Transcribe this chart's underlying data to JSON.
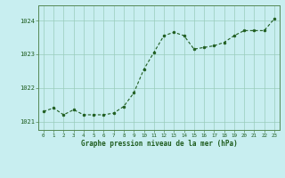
{
  "x": [
    0,
    1,
    2,
    3,
    4,
    5,
    6,
    7,
    8,
    9,
    10,
    11,
    12,
    13,
    14,
    15,
    16,
    17,
    18,
    19,
    20,
    21,
    22,
    23
  ],
  "y": [
    1021.3,
    1021.4,
    1021.2,
    1021.35,
    1021.2,
    1021.2,
    1021.2,
    1021.25,
    1021.45,
    1021.85,
    1022.55,
    1023.05,
    1023.55,
    1023.65,
    1023.55,
    1023.15,
    1023.2,
    1023.25,
    1023.35,
    1023.55,
    1023.7,
    1023.7,
    1023.7,
    1024.05
  ],
  "ylim": [
    1020.75,
    1024.45
  ],
  "yticks": [
    1021,
    1022,
    1023,
    1024
  ],
  "xticks": [
    0,
    1,
    2,
    3,
    4,
    5,
    6,
    7,
    8,
    9,
    10,
    11,
    12,
    13,
    14,
    15,
    16,
    17,
    18,
    19,
    20,
    21,
    22,
    23
  ],
  "line_color": "#1e5c1e",
  "marker_color": "#1e5c1e",
  "bg_color": "#c8eef0",
  "grid_color": "#99ccbb",
  "border_color": "#558855",
  "xlabel": "Graphe pression niveau de la mer (hPa)",
  "xlabel_color": "#1e5c1e",
  "tick_color": "#1e5c1e"
}
